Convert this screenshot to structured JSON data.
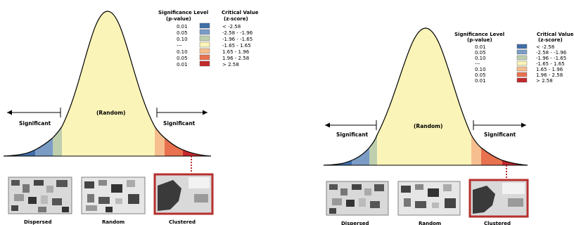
{
  "legend": {
    "significance_title": "Significance Level",
    "significance_sub": "(p-value)",
    "critical_title": "Critical Value",
    "critical_sub": "(z-score)",
    "rows": [
      {
        "p": "0.01",
        "z": "< -2.58",
        "color": "#3f6ea8"
      },
      {
        "p": "0.05",
        "z": "-2.58 - -1.96",
        "color": "#7a9cc5"
      },
      {
        "p": "0.10",
        "z": "-1.96 - -1.65",
        "color": "#bfcfae"
      },
      {
        "p": "---",
        "z": "-1.65 - 1.65",
        "color": "#fbf4b8"
      },
      {
        "p": "0.10",
        "z": "1.65 - 1.96",
        "color": "#f6be8e"
      },
      {
        "p": "0.05",
        "z": "1.96 - 2.58",
        "color": "#e8714f"
      },
      {
        "p": "0.01",
        "z": "> 2.58",
        "color": "#c4282c"
      }
    ]
  },
  "curve": {
    "random_label": "(Random)",
    "significant_left": "Significant",
    "significant_right": "Significant"
  },
  "maps": {
    "dispersed": "Dispersed",
    "random": "Random",
    "clustered": "Clustered",
    "highlight_color": "#b5302d"
  }
}
